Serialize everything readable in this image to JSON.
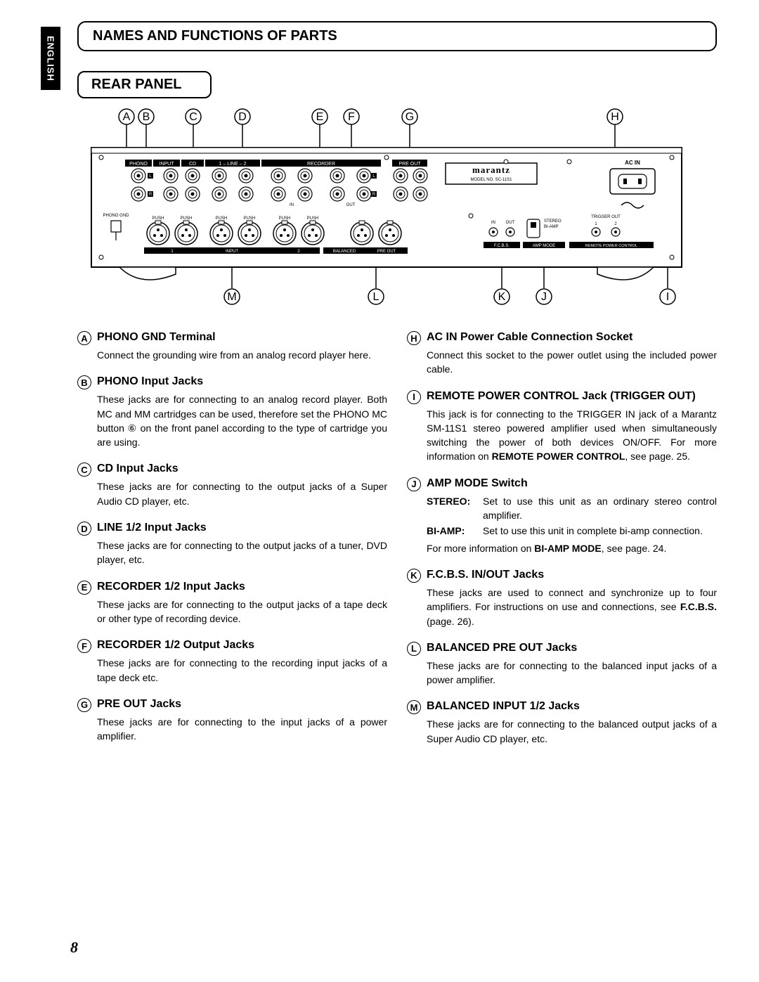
{
  "lang_tab": "ENGLISH",
  "title": "NAMES AND FUNCTIONS OF PARTS",
  "section": "REAR PANEL",
  "page_number": "8",
  "diagram": {
    "top_callouts": [
      "A",
      "B",
      "C",
      "D",
      "E",
      "F",
      "G",
      "H"
    ],
    "bottom_callouts": [
      "M",
      "L",
      "K",
      "J",
      "I"
    ],
    "panel_labels": {
      "phono": "PHONO",
      "input": "INPUT",
      "cd": "CD",
      "line": "1 – LINE – 2",
      "recorder": "RECORDER",
      "preout": "PRE OUT",
      "acin": "AC IN",
      "brand": "marantz",
      "model": "MODEL NO.  SC-11S1",
      "phono_gnd": "PHONO\nGND",
      "in": "IN",
      "out": "OUT",
      "balanced_input": "INPUT",
      "balanced": "BALANCED",
      "balanced_preout": "PRE OUT",
      "fcbs_in": "IN",
      "fcbs_out": "OUT",
      "fcbs": "F.C.B.S.",
      "stereo": "STEREO",
      "biamp": "BI-AMP",
      "ampmode": "AMP MODE",
      "trigger": "TRIGGER OUT",
      "trigger1": "1",
      "trigger2": "2",
      "remote": "REMOTE POWER CONTROL",
      "L": "L",
      "R": "R",
      "one": "1",
      "two": "2",
      "push": "PUSH"
    },
    "colors": {
      "stroke": "#000000",
      "fill": "#ffffff",
      "black": "#000000",
      "grey": "#cccccc",
      "hatch": "#888888"
    }
  },
  "left_items": [
    {
      "letter": "A",
      "title": "PHONO GND Terminal",
      "body": "Connect the grounding wire from an analog record player here."
    },
    {
      "letter": "B",
      "title": "PHONO Input Jacks",
      "body": "These jacks are for connecting to an analog record player. Both MC and MM cartridges can be used, therefore set the PHONO MC button ⑥ on the front panel according to the type of cartridge you are using."
    },
    {
      "letter": "C",
      "title": "CD Input Jacks",
      "body": "These jacks are for connecting to the output jacks of a Super Audio CD player, etc."
    },
    {
      "letter": "D",
      "title": "LINE 1/2 Input Jacks",
      "body": "These jacks are for connecting to the output jacks of a tuner, DVD player, etc."
    },
    {
      "letter": "E",
      "title": "RECORDER 1/2 Input Jacks",
      "body": "These jacks are for connecting to the output jacks of a tape deck or other type of recording device."
    },
    {
      "letter": "F",
      "title": "RECORDER 1/2 Output Jacks",
      "body": "These jacks are for connecting to the recording input jacks of a tape deck etc."
    },
    {
      "letter": "G",
      "title": "PRE OUT Jacks",
      "body": "These jacks are for connecting to the input jacks of a power amplifier."
    }
  ],
  "right_items": [
    {
      "letter": "H",
      "title": "AC IN Power Cable Connection Socket",
      "body": "Connect this socket to the power outlet using the included power cable."
    },
    {
      "letter": "I",
      "title": "REMOTE POWER CONTROL Jack (TRIGGER OUT)",
      "body": "This jack is for connecting to the TRIGGER IN jack of a Marantz SM-11S1 stereo powered amplifier used when simultaneously switching the power of both devices ON/OFF. For more information on <b>REMOTE POWER CONTROL</b>, see page. 25."
    },
    {
      "letter": "J",
      "title": "AMP MODE Switch",
      "defs": [
        {
          "label": "STEREO:",
          "text": "Set to use this unit as an ordinary stereo control amplifier."
        },
        {
          "label": "BI-AMP:",
          "text": "Set to use this unit in complete bi-amp connection."
        }
      ],
      "footnote": "For more information on <b>BI-AMP MODE</b>, see page. 24."
    },
    {
      "letter": "K",
      "title": "F.C.B.S. IN/OUT Jacks",
      "body": "These jacks are used to connect and synchronize up to four amplifiers. For instructions on use and connections, see <b>F.C.B.S.</b> (page. 26)."
    },
    {
      "letter": "L",
      "title": "BALANCED PRE OUT Jacks",
      "body": "These jacks are for connecting to the balanced input jacks of a power amplifier."
    },
    {
      "letter": "M",
      "title": "BALANCED INPUT 1/2 Jacks",
      "body": "These jacks are for connecting to the balanced output jacks of a Super Audio CD player, etc."
    }
  ]
}
